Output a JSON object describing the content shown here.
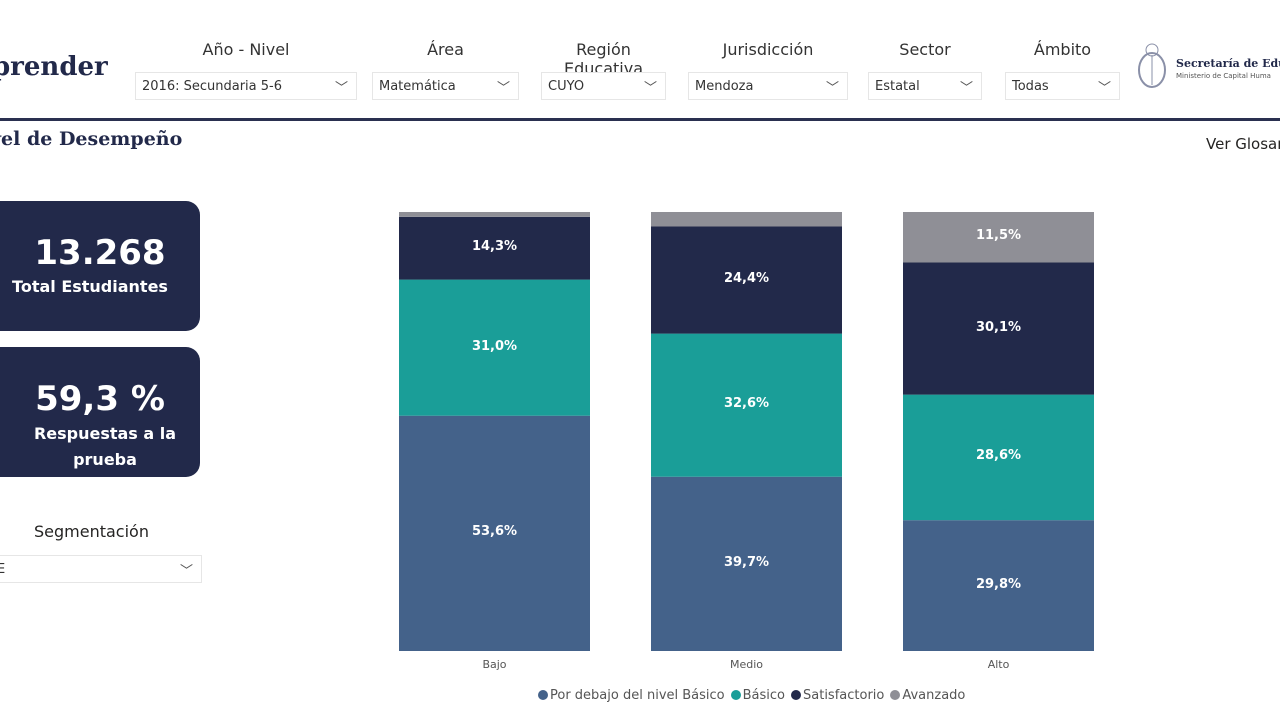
{
  "header": {
    "logo": "prender",
    "filters": [
      {
        "label": "Año - Nivel",
        "value": "2016: Secundaria 5-6"
      },
      {
        "label": "Área",
        "value": "Matemática"
      },
      {
        "label": "Región Educativa",
        "value": "CUYO"
      },
      {
        "label": "Jurisdicción",
        "value": "Mendoza"
      },
      {
        "label": "Sector",
        "value": "Estatal"
      },
      {
        "label": "Ámbito",
        "value": "Todas"
      }
    ],
    "org_name": "Secretaría de Educ",
    "org_sub": "Ministerio de Capital Huma"
  },
  "page_title": "vel de Desempeño",
  "glossary_link": "Ver Glosar",
  "cards": [
    {
      "value": "13.268",
      "label": "Total Estudiantes"
    },
    {
      "value": "59,3 %",
      "label": "Respuestas a la prueba"
    }
  ],
  "segmentation": {
    "label": "Segmentación",
    "value": "E"
  },
  "colors": {
    "below": "#44628a",
    "basic": "#1a9e98",
    "satisfactory": "#22294a",
    "advanced": "#8f8f96"
  },
  "chart_data": {
    "type": "bar",
    "stacked": true,
    "percent": true,
    "categories": [
      "Bajo",
      "Medio",
      "Alto"
    ],
    "series": [
      {
        "name": "Por debajo del nivel Básico",
        "values": [
          53.6,
          39.7,
          29.8
        ],
        "labels": [
          "53,6%",
          "39,7%",
          "29,8%"
        ]
      },
      {
        "name": "Básico",
        "values": [
          31.0,
          32.6,
          28.6
        ],
        "labels": [
          "31,0%",
          "32,6%",
          "28,6%"
        ]
      },
      {
        "name": "Satisfactorio",
        "values": [
          14.3,
          24.4,
          30.1
        ],
        "labels": [
          "14,3%",
          "24,4%",
          "30,1%"
        ]
      },
      {
        "name": "Avanzado",
        "values": [
          1.1,
          3.3,
          11.5
        ],
        "labels": [
          "",
          "",
          "11,5%"
        ]
      }
    ],
    "ylim": [
      0,
      100
    ],
    "legend": "bottom"
  }
}
